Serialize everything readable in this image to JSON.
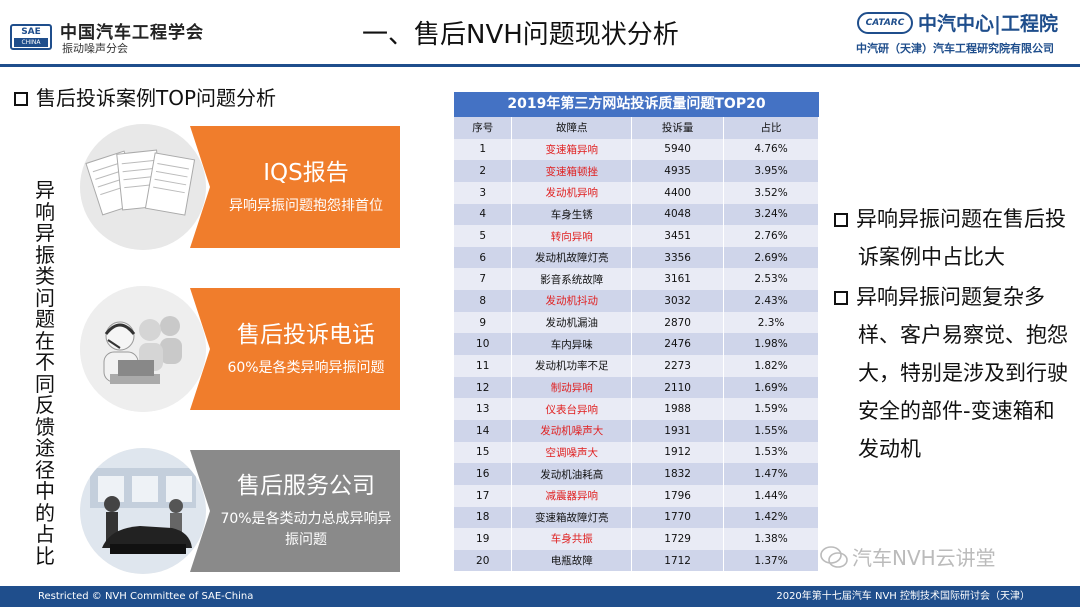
{
  "header": {
    "sae_logo_top": "SAE",
    "sae_logo_bottom": "CHINA",
    "org_name": "中国汽车工程学会",
    "org_sub": "振动噪声分会",
    "title": "一、售后NVH问题现状分析",
    "catarc_logo": "CATARC",
    "catarc_name": "中汽中心|工程院",
    "catarc_sub": "中汽研（天津）汽车工程研究院有限公司"
  },
  "section_heading": "售后投诉案例TOP问题分析",
  "vertical_text": "异响异振类问题在不同反馈途径中的占比",
  "cases": [
    {
      "title": "IQS报告",
      "text": "异响异振问题抱怨排首位",
      "icon": "documents-icon"
    },
    {
      "title": "售后投诉电话",
      "text": "60%是各类异响异振问题",
      "icon": "call-center-icon"
    },
    {
      "title": "售后服务公司",
      "text": "70%是各类动力总成异响异振问题",
      "icon": "service-shop-icon"
    }
  ],
  "table": {
    "title": "2019年第三方网站投诉质量问题TOP20",
    "headers": [
      "序号",
      "故障点",
      "投诉量",
      "占比"
    ],
    "rows": [
      [
        "1",
        "变速箱异响",
        "5940",
        "4.76%"
      ],
      [
        "2",
        "变速箱顿挫",
        "4935",
        "3.95%"
      ],
      [
        "3",
        "发动机异响",
        "4400",
        "3.52%"
      ],
      [
        "4",
        "车身生锈",
        "4048",
        "3.24%"
      ],
      [
        "5",
        "转向异响",
        "3451",
        "2.76%"
      ],
      [
        "6",
        "发动机故障灯亮",
        "3356",
        "2.69%"
      ],
      [
        "7",
        "影音系统故障",
        "3161",
        "2.53%"
      ],
      [
        "8",
        "发动机抖动",
        "3032",
        "2.43%"
      ],
      [
        "9",
        "发动机漏油",
        "2870",
        "2.3%"
      ],
      [
        "10",
        "车内异味",
        "2476",
        "1.98%"
      ],
      [
        "11",
        "发动机功率不足",
        "2273",
        "1.82%"
      ],
      [
        "12",
        "制动异响",
        "2110",
        "1.69%"
      ],
      [
        "13",
        "仪表台异响",
        "1988",
        "1.59%"
      ],
      [
        "14",
        "发动机噪声大",
        "1931",
        "1.55%"
      ],
      [
        "15",
        "空调噪声大",
        "1912",
        "1.53%"
      ],
      [
        "16",
        "发动机油耗高",
        "1832",
        "1.47%"
      ],
      [
        "17",
        "减震器异响",
        "1796",
        "1.44%"
      ],
      [
        "18",
        "变速箱故障灯亮",
        "1770",
        "1.42%"
      ],
      [
        "19",
        "车身共振",
        "1729",
        "1.38%"
      ],
      [
        "20",
        "电瓶故障",
        "1712",
        "1.37%"
      ]
    ],
    "highlighted_rows": [
      1,
      2,
      3,
      5,
      8,
      12,
      13,
      14,
      15,
      17,
      19
    ],
    "highlight_color": "#e02020"
  },
  "bullets": [
    "异响异振问题在售后投诉案例中占比大",
    "异响异振问题复杂多样、客户易察觉、抱怨大，特别是涉及到行驶安全的部件-变速箱和发动机"
  ],
  "watermark": "汽车NVH云讲堂",
  "footer": {
    "left": "Restricted © NVH Committee of SAE-China",
    "right": "2020年第十七届汽车 NVH 控制技术国际研讨会（天津）"
  },
  "colors": {
    "brand_blue": "#1f4e8c",
    "orange": "#f07d2c",
    "gray": "#8a8a8a",
    "table_header": "#4472c4"
  }
}
